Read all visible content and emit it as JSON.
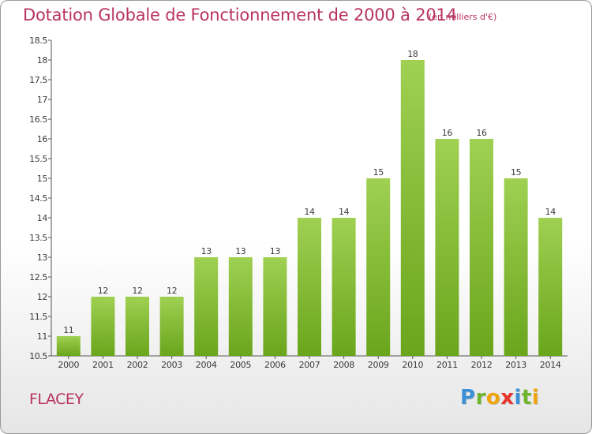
{
  "chart_data": {
    "type": "bar",
    "title": "Dotation Globale de Fonctionnement de 2000 à 2014",
    "subtitle": "(en milliers d'€)",
    "categories": [
      "2000",
      "2001",
      "2002",
      "2003",
      "2004",
      "2005",
      "2006",
      "2007",
      "2008",
      "2009",
      "2010",
      "2011",
      "2012",
      "2013",
      "2014"
    ],
    "values": [
      11,
      12,
      12,
      12,
      13,
      13,
      13,
      14,
      14,
      15,
      18,
      16,
      16,
      15,
      14
    ],
    "ylim": [
      10.5,
      18.5
    ],
    "yticks": [
      10.5,
      11,
      11.5,
      12,
      12.5,
      13,
      13.5,
      14,
      14.5,
      15,
      15.5,
      16,
      16.5,
      17,
      17.5,
      18,
      18.5
    ],
    "grid": false,
    "bar_color_top": "#9fd052",
    "bar_color_bottom": "#6aa51c"
  },
  "footer": {
    "commune": "FLACEY",
    "brand_letters": [
      "P",
      "r",
      "o",
      "x",
      "i",
      "t",
      "i"
    ],
    "brand_colors": [
      "#3a8fd6",
      "#6cb52d",
      "#f0a30a",
      "#e8352c",
      "#3a8fd6",
      "#6cb52d",
      "#f0a30a"
    ]
  }
}
